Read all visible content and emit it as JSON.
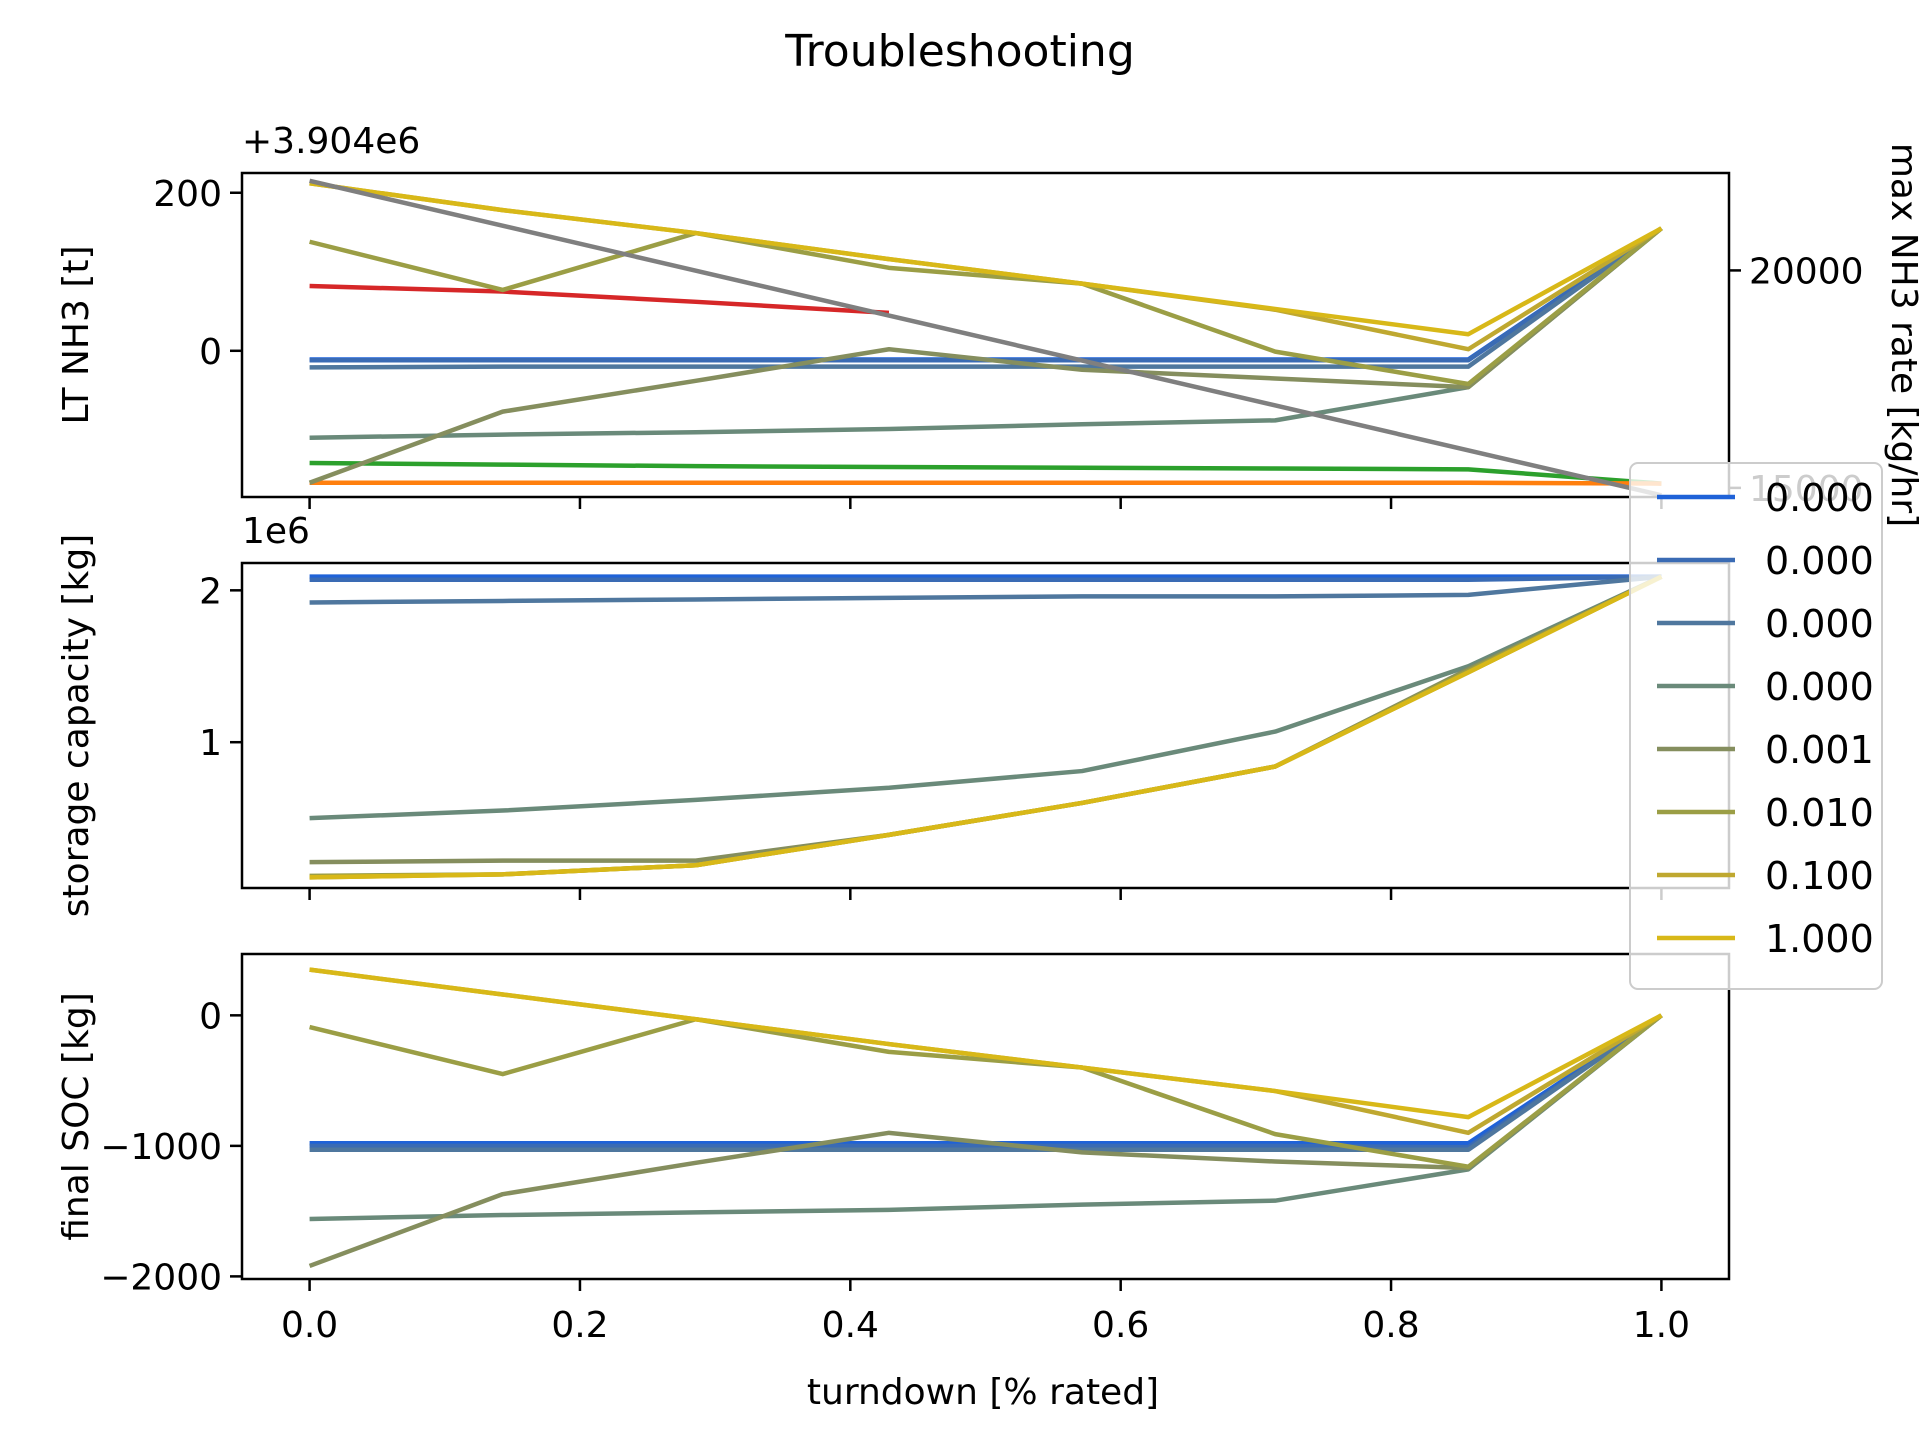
{
  "chart_data": {
    "type": "line",
    "title": "Troubleshooting",
    "xlabel": "turndown [% rated]",
    "x": [
      0.0,
      0.142857,
      0.285714,
      0.428571,
      0.571429,
      0.714286,
      0.857143,
      1.0
    ],
    "xlim": [
      -0.05,
      1.05
    ],
    "xticks": [
      0.0,
      0.2,
      0.4,
      0.6,
      0.8,
      1.0
    ],
    "xtick_labels": [
      "0.0",
      "0.2",
      "0.4",
      "0.6",
      "0.8",
      "1.0"
    ],
    "legend": {
      "placement": "right",
      "entries": [
        {
          "label": "0.000",
          "color": "#1f62d8"
        },
        {
          "label": "0.000",
          "color": "#3a6bb4"
        },
        {
          "label": "0.000",
          "color": "#4f779e"
        },
        {
          "label": "0.000",
          "color": "#6a8a7a"
        },
        {
          "label": "0.001",
          "color": "#858e5e"
        },
        {
          "label": "0.010",
          "color": "#9b9e45"
        },
        {
          "label": "0.100",
          "color": "#bfa830"
        },
        {
          "label": "1.000",
          "color": "#d8b818"
        }
      ]
    },
    "panels": [
      {
        "ylabel": "LT NH3 [t]",
        "offset_text": "+3.904e6",
        "ylim": [
          -185,
          225
        ],
        "yticks": [
          0,
          200
        ],
        "ytick_labels": [
          "0",
          "200"
        ],
        "right_axis": {
          "ylabel": "max NH3 rate [kg/hr]",
          "ylim": [
            14790,
            22240
          ],
          "yticks": [
            15000,
            20000
          ],
          "ytick_labels": [
            "15000",
            "20000"
          ],
          "series": [
            {
              "color": "#7f7f7f",
              "x": [
                0.0,
                1.0
              ],
              "values": [
                22060,
                14830
              ]
            }
          ]
        },
        "series": [
          {
            "color": "#d62728",
            "x": [
              0.0,
              0.142857,
              0.285714,
              0.428571
            ],
            "values": [
              82,
              75,
              62,
              48
            ]
          },
          {
            "color": "#2ca02c",
            "x": [
              0.0,
              0.142857,
              0.285714,
              0.428571,
              0.571429,
              0.714286,
              0.857143,
              1.0
            ],
            "values": [
              -142,
              -144,
              -146,
              -147,
              -148,
              -149,
              -150,
              -168
            ]
          },
          {
            "color": "#ff7f0e",
            "x": [
              0.0,
              0.142857,
              0.285714,
              0.428571,
              0.571429,
              0.714286,
              0.857143,
              1.0
            ],
            "values": [
              -167,
              -167,
              -167,
              -167,
              -167,
              -167,
              -167,
              -168
            ]
          },
          {
            "color": "#1f62d8",
            "x": [
              0.0,
              0.142857,
              0.285714,
              0.428571,
              0.571429,
              0.714286,
              0.857143,
              1.0
            ],
            "values": [
              -11,
              -11,
              -11,
              -11,
              -11,
              -11,
              -11,
              155
            ]
          },
          {
            "color": "#3a6bb4",
            "x": [
              0.0,
              0.142857,
              0.285714,
              0.428571,
              0.571429,
              0.714286,
              0.857143,
              1.0
            ],
            "values": [
              -12,
              -12,
              -12,
              -12,
              -12,
              -12,
              -12,
              155
            ]
          },
          {
            "color": "#4f779e",
            "x": [
              0.0,
              0.142857,
              0.285714,
              0.428571,
              0.571429,
              0.714286,
              0.857143,
              1.0
            ],
            "values": [
              -21,
              -20,
              -20,
              -20,
              -20,
              -20,
              -20,
              155
            ]
          },
          {
            "color": "#6a8a7a",
            "x": [
              0.0,
              0.142857,
              0.285714,
              0.428571,
              0.571429,
              0.714286,
              0.857143,
              1.0
            ],
            "values": [
              -110,
              -106,
              -103,
              -99,
              -93,
              -88,
              -46,
              155
            ]
          },
          {
            "color": "#858e5e",
            "x": [
              0.0,
              0.142857,
              0.285714,
              0.428571,
              0.571429,
              0.714286,
              0.857143,
              1.0
            ],
            "values": [
              -167,
              -77,
              -38,
              2,
              -24,
              -35,
              -46,
              155
            ]
          },
          {
            "color": "#9b9e45",
            "x": [
              0.0,
              0.142857,
              0.285714,
              0.428571,
              0.571429,
              0.714286,
              0.857143,
              1.0
            ],
            "values": [
              138,
              77,
              149,
              105,
              85,
              -1,
              -42,
              155
            ]
          },
          {
            "color": "#bfa830",
            "x": [
              0.0,
              0.142857,
              0.285714,
              0.428571,
              0.571429,
              0.714286,
              0.857143,
              1.0
            ],
            "values": [
              212,
              178,
              149,
              116,
              85,
              52,
              2,
              155
            ]
          },
          {
            "color": "#d8b818",
            "x": [
              0.0,
              0.142857,
              0.285714,
              0.428571,
              0.571429,
              0.714286,
              0.857143,
              1.0
            ],
            "values": [
              212,
              178,
              149,
              116,
              85,
              53,
              21,
              155
            ]
          }
        ]
      },
      {
        "ylabel": "storage capacity [kg]",
        "offset_text": "1e6",
        "ylim": [
          0.04,
          2.18
        ],
        "yticks": [
          1,
          2
        ],
        "ytick_labels": [
          "1",
          "2"
        ],
        "series": [
          {
            "color": "#1f62d8",
            "x": [
              0.0,
              0.142857,
              0.285714,
              0.428571,
              0.571429,
              0.714286,
              0.857143,
              1.0
            ],
            "values": [
              2.09,
              2.09,
              2.09,
              2.09,
              2.09,
              2.09,
              2.09,
              2.09
            ]
          },
          {
            "color": "#3a6bb4",
            "x": [
              0.0,
              0.142857,
              0.285714,
              0.428571,
              0.571429,
              0.714286,
              0.857143,
              1.0
            ],
            "values": [
              2.07,
              2.07,
              2.07,
              2.07,
              2.07,
              2.07,
              2.07,
              2.09
            ]
          },
          {
            "color": "#4f779e",
            "x": [
              0.0,
              0.142857,
              0.285714,
              0.428571,
              0.571429,
              0.714286,
              0.857143,
              1.0
            ],
            "values": [
              1.92,
              1.93,
              1.94,
              1.95,
              1.96,
              1.96,
              1.97,
              2.09
            ]
          },
          {
            "color": "#6a8a7a",
            "x": [
              0.0,
              0.142857,
              0.285714,
              0.428571,
              0.571429,
              0.714286,
              0.857143,
              1.0
            ],
            "values": [
              0.5,
              0.55,
              0.62,
              0.7,
              0.81,
              1.07,
              1.5,
              2.09
            ]
          },
          {
            "color": "#858e5e",
            "x": [
              0.0,
              0.142857,
              0.285714,
              0.428571,
              0.571429,
              0.714286,
              0.857143,
              1.0
            ],
            "values": [
              0.21,
              0.22,
              0.22,
              0.39,
              0.6,
              0.84,
              1.48,
              2.09
            ]
          },
          {
            "color": "#9b9e45",
            "x": [
              0.0,
              0.142857,
              0.285714,
              0.428571,
              0.571429,
              0.714286,
              0.857143,
              1.0
            ],
            "values": [
              0.12,
              0.13,
              0.19,
              0.39,
              0.6,
              0.84,
              1.47,
              2.09
            ]
          },
          {
            "color": "#bfa830",
            "x": [
              0.0,
              0.142857,
              0.285714,
              0.428571,
              0.571429,
              0.714286,
              0.857143,
              1.0
            ],
            "values": [
              0.11,
              0.13,
              0.19,
              0.39,
              0.6,
              0.84,
              1.46,
              2.09
            ]
          },
          {
            "color": "#d8b818",
            "x": [
              0.0,
              0.142857,
              0.285714,
              0.428571,
              0.571429,
              0.714286,
              0.857143,
              1.0
            ],
            "values": [
              0.11,
              0.13,
              0.19,
              0.39,
              0.6,
              0.84,
              1.46,
              2.09
            ]
          }
        ]
      },
      {
        "ylabel": "final SOC [kg]",
        "ylim": [
          -2020,
          470
        ],
        "yticks": [
          -2000,
          -1000,
          0
        ],
        "ytick_labels": [
          "−2000",
          "−1000",
          "0"
        ],
        "series": [
          {
            "color": "#1f62d8",
            "x": [
              0.0,
              0.142857,
              0.285714,
              0.428571,
              0.571429,
              0.714286,
              0.857143,
              1.0
            ],
            "values": [
              -980,
              -980,
              -980,
              -980,
              -980,
              -980,
              -980,
              0
            ]
          },
          {
            "color": "#3a6bb4",
            "x": [
              0.0,
              0.142857,
              0.285714,
              0.428571,
              0.571429,
              0.714286,
              0.857143,
              1.0
            ],
            "values": [
              -1000,
              -1000,
              -1000,
              -1000,
              -1000,
              -1000,
              -1010,
              0
            ]
          },
          {
            "color": "#4f779e",
            "x": [
              0.0,
              0.142857,
              0.285714,
              0.428571,
              0.571429,
              0.714286,
              0.857143,
              1.0
            ],
            "values": [
              -1030,
              -1030,
              -1030,
              -1030,
              -1030,
              -1030,
              -1030,
              0
            ]
          },
          {
            "color": "#6a8a7a",
            "x": [
              0.0,
              0.142857,
              0.285714,
              0.428571,
              0.571429,
              0.714286,
              0.857143,
              1.0
            ],
            "values": [
              -1560,
              -1530,
              -1510,
              -1490,
              -1450,
              -1420,
              -1180,
              0
            ]
          },
          {
            "color": "#858e5e",
            "x": [
              0.0,
              0.142857,
              0.285714,
              0.428571,
              0.571429,
              0.714286,
              0.857143,
              1.0
            ],
            "values": [
              -1920,
              -1370,
              -1130,
              -900,
              -1050,
              -1120,
              -1170,
              0
            ]
          },
          {
            "color": "#9b9e45",
            "x": [
              0.0,
              0.142857,
              0.285714,
              0.428571,
              0.571429,
              0.714286,
              0.857143,
              1.0
            ],
            "values": [
              -90,
              -450,
              -30,
              -280,
              -400,
              -910,
              -1160,
              0
            ]
          },
          {
            "color": "#bfa830",
            "x": [
              0.0,
              0.142857,
              0.285714,
              0.428571,
              0.571429,
              0.714286,
              0.857143,
              1.0
            ],
            "values": [
              350,
              160,
              -30,
              -220,
              -400,
              -580,
              -900,
              0
            ]
          },
          {
            "color": "#d8b818",
            "x": [
              0.0,
              0.142857,
              0.285714,
              0.428571,
              0.571429,
              0.714286,
              0.857143,
              1.0
            ],
            "values": [
              350,
              160,
              -30,
              -220,
              -400,
              -580,
              -780,
              0
            ]
          }
        ]
      }
    ]
  }
}
